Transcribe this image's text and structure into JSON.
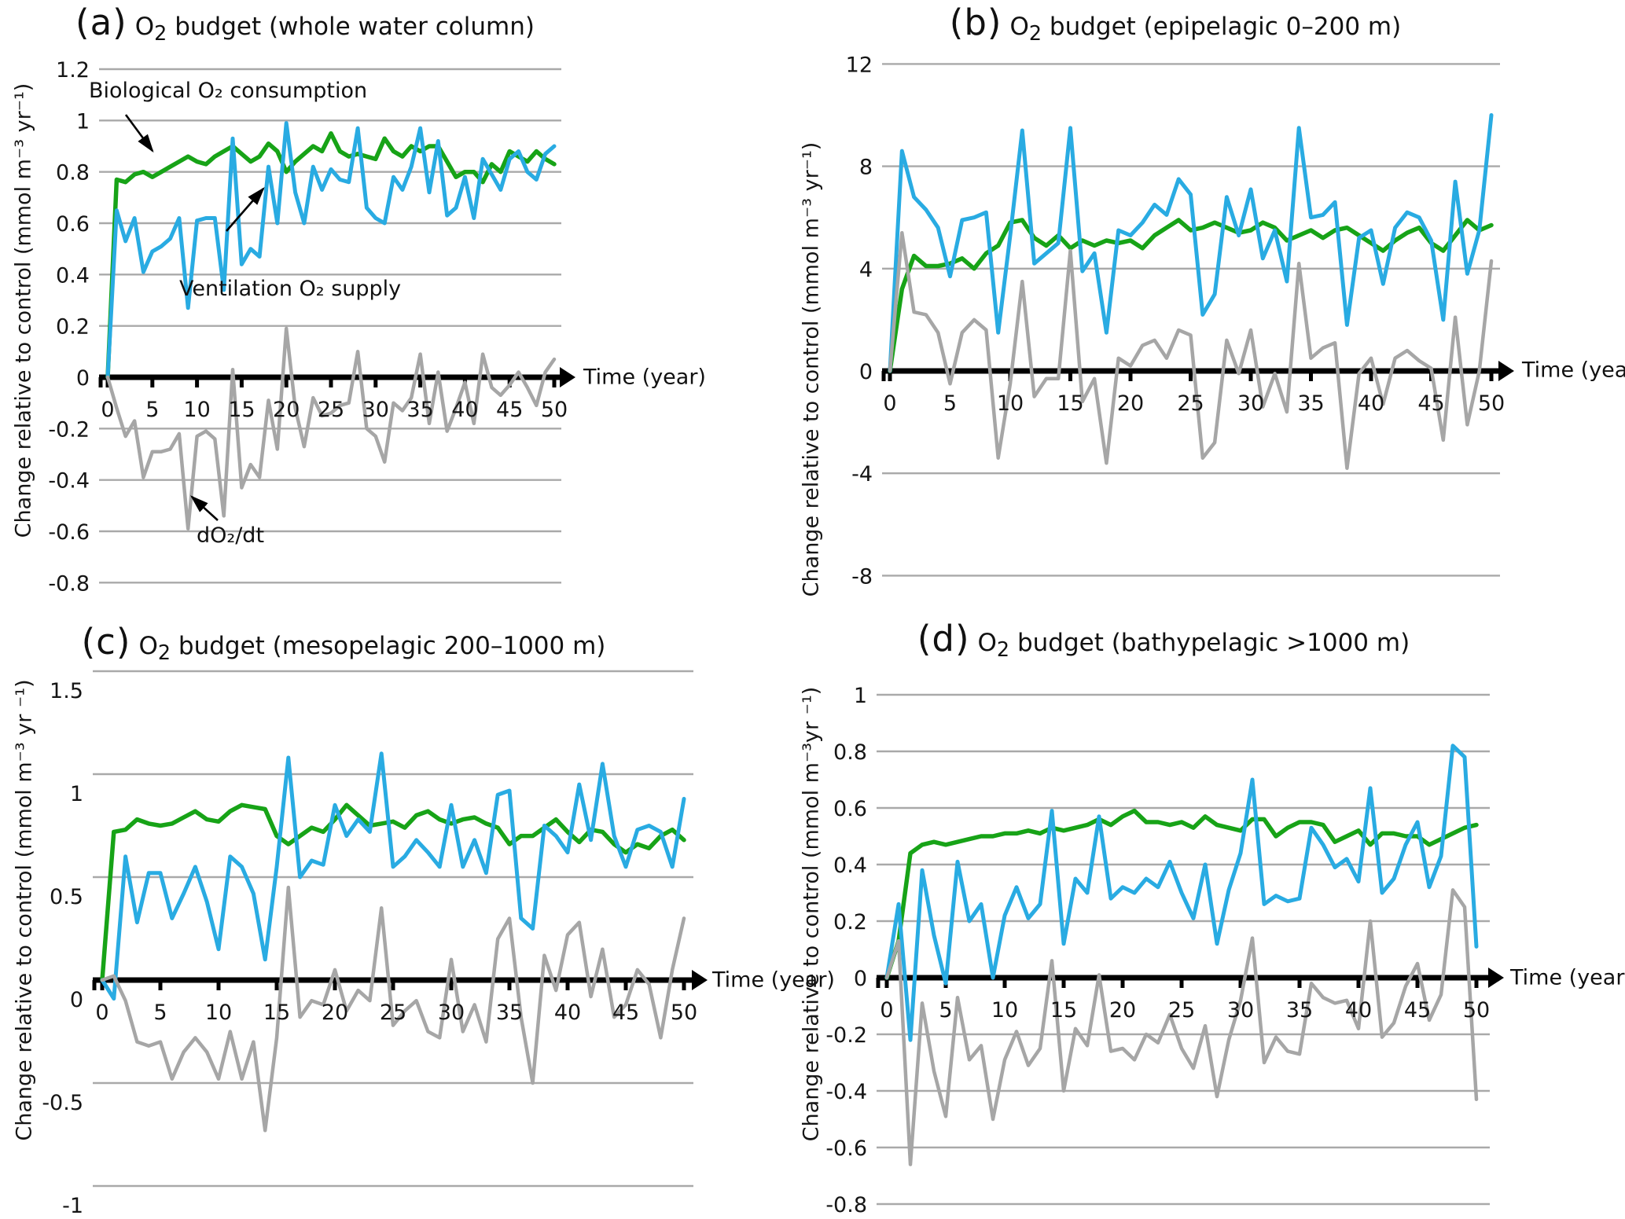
{
  "figure": {
    "background": "#ffffff",
    "colors": {
      "biological": "#17a317",
      "ventilation": "#29abe2",
      "dO2dt": "#a6a6a6",
      "gridline": "#a9a9a9",
      "axis": "#000000",
      "text": "#151515"
    }
  },
  "annotations": {
    "biological": "Biological O₂ consumption",
    "ventilation": "Ventilation O₂ supply",
    "dO2dt": "dO₂/dt"
  },
  "years": [
    0,
    1,
    2,
    3,
    4,
    5,
    6,
    7,
    8,
    9,
    10,
    11,
    12,
    13,
    14,
    15,
    16,
    17,
    18,
    19,
    20,
    21,
    22,
    23,
    24,
    25,
    26,
    27,
    28,
    29,
    30,
    31,
    32,
    33,
    34,
    35,
    36,
    37,
    38,
    39,
    40,
    41,
    42,
    43,
    44,
    45,
    46,
    47,
    48,
    49,
    50
  ],
  "chart_data": [
    {
      "type": "line",
      "panel": "(a)",
      "title": "O₂ budget (whole water column)",
      "xlabel": "Time (year)",
      "ylabel": "Change relative to control (mmol m⁻³ yr⁻¹)",
      "xlim": [
        0,
        50
      ],
      "ylim": [
        -0.8,
        1.2
      ],
      "grid": true,
      "legend": "annotated on plot",
      "xticks": [
        0,
        5,
        10,
        15,
        20,
        25,
        30,
        35,
        40,
        45,
        50
      ],
      "ytick_values": [
        1.2,
        1.0,
        0.8,
        0.6,
        0.4,
        0.2,
        0,
        -0.2,
        -0.4,
        -0.6,
        -0.8
      ],
      "ytick_labels": [
        "1.2",
        "1",
        "0.8",
        "0.6",
        "0.4",
        "0.2",
        "0",
        "-0.2",
        "-0.4",
        "-0.6",
        "-0.8"
      ],
      "series": [
        {
          "name": "Biological O₂ consumption",
          "color": "#17a317",
          "values": [
            0.0,
            0.77,
            0.76,
            0.79,
            0.8,
            0.78,
            0.8,
            0.82,
            0.84,
            0.86,
            0.84,
            0.83,
            0.86,
            0.88,
            0.9,
            0.87,
            0.84,
            0.86,
            0.91,
            0.88,
            0.8,
            0.84,
            0.87,
            0.9,
            0.88,
            0.95,
            0.88,
            0.86,
            0.87,
            0.86,
            0.85,
            0.93,
            0.88,
            0.86,
            0.9,
            0.88,
            0.9,
            0.9,
            0.84,
            0.78,
            0.8,
            0.8,
            0.76,
            0.83,
            0.8,
            0.88,
            0.86,
            0.84,
            0.88,
            0.85,
            0.83
          ]
        },
        {
          "name": "Ventilation O₂ supply",
          "color": "#29abe2",
          "values": [
            0.0,
            0.65,
            0.53,
            0.62,
            0.41,
            0.49,
            0.51,
            0.54,
            0.62,
            0.27,
            0.61,
            0.62,
            0.62,
            0.34,
            0.93,
            0.44,
            0.5,
            0.47,
            0.82,
            0.6,
            0.99,
            0.72,
            0.6,
            0.82,
            0.73,
            0.81,
            0.77,
            0.76,
            0.97,
            0.66,
            0.62,
            0.6,
            0.78,
            0.73,
            0.82,
            0.97,
            0.72,
            0.92,
            0.63,
            0.66,
            0.78,
            0.62,
            0.85,
            0.79,
            0.73,
            0.85,
            0.88,
            0.8,
            0.77,
            0.87,
            0.9
          ]
        },
        {
          "name": "dO₂/dt",
          "color": "#a6a6a6",
          "values": [
            0.0,
            -0.12,
            -0.23,
            -0.17,
            -0.39,
            -0.29,
            -0.29,
            -0.28,
            -0.22,
            -0.59,
            -0.23,
            -0.21,
            -0.24,
            -0.54,
            0.03,
            -0.43,
            -0.34,
            -0.39,
            -0.09,
            -0.28,
            0.19,
            -0.12,
            -0.27,
            -0.08,
            -0.15,
            -0.14,
            -0.11,
            -0.1,
            0.1,
            -0.2,
            -0.23,
            -0.33,
            -0.1,
            -0.13,
            -0.08,
            0.09,
            -0.18,
            0.02,
            -0.21,
            -0.12,
            -0.02,
            -0.18,
            0.09,
            -0.04,
            -0.07,
            -0.03,
            0.02,
            -0.04,
            -0.11,
            0.02,
            0.07
          ]
        }
      ]
    },
    {
      "type": "line",
      "panel": "(b)",
      "title": "O₂ budget (epipelagic 0–200 m)",
      "xlabel": "Time (year)",
      "ylabel": "Change relative to control (mmol m⁻³ yr⁻¹)",
      "xlim": [
        0,
        50
      ],
      "ylim": [
        -8,
        12
      ],
      "grid": true,
      "legend": "none",
      "xticks": [
        0,
        5,
        10,
        15,
        20,
        25,
        30,
        35,
        40,
        45,
        50
      ],
      "ytick_values": [
        12,
        8,
        4,
        0,
        -4,
        -8
      ],
      "ytick_labels": [
        "12",
        "8",
        "4",
        "0",
        "-4",
        "-8"
      ],
      "series": [
        {
          "name": "Biological O₂ consumption",
          "color": "#17a317",
          "values": [
            0,
            3.2,
            4.5,
            4.1,
            4.1,
            4.2,
            4.4,
            4.0,
            4.6,
            4.9,
            5.8,
            5.9,
            5.2,
            4.9,
            5.3,
            4.8,
            5.1,
            4.9,
            5.1,
            5.0,
            5.1,
            4.8,
            5.3,
            5.6,
            5.9,
            5.5,
            5.6,
            5.8,
            5.6,
            5.4,
            5.5,
            5.8,
            5.6,
            5.1,
            5.3,
            5.5,
            5.2,
            5.5,
            5.6,
            5.3,
            5.0,
            4.7,
            5.1,
            5.4,
            5.6,
            5.0,
            4.7,
            5.3,
            5.9,
            5.5,
            5.7
          ]
        },
        {
          "name": "Ventilation O₂ supply",
          "color": "#29abe2",
          "values": [
            0,
            8.6,
            6.8,
            6.3,
            5.6,
            3.7,
            5.9,
            6.0,
            6.2,
            1.5,
            5.3,
            9.4,
            4.2,
            4.6,
            5.0,
            9.5,
            3.9,
            4.6,
            1.5,
            5.5,
            5.3,
            5.8,
            6.5,
            6.1,
            7.5,
            6.9,
            2.2,
            3.0,
            6.8,
            5.3,
            7.1,
            4.4,
            5.5,
            3.5,
            9.5,
            6.0,
            6.1,
            6.6,
            1.8,
            5.2,
            5.5,
            3.4,
            5.6,
            6.2,
            6.0,
            5.1,
            2.0,
            7.4,
            3.8,
            5.5,
            10.0
          ]
        },
        {
          "name": "dO₂/dt",
          "color": "#a6a6a6",
          "values": [
            0,
            5.4,
            2.3,
            2.2,
            1.5,
            -0.5,
            1.5,
            2.0,
            1.6,
            -3.4,
            -0.5,
            3.5,
            -1.0,
            -0.3,
            -0.3,
            4.7,
            -1.2,
            -0.3,
            -3.6,
            0.5,
            0.2,
            1.0,
            1.2,
            0.5,
            1.6,
            1.4,
            -3.4,
            -2.8,
            1.2,
            -0.1,
            1.6,
            -1.4,
            -0.1,
            -1.6,
            4.2,
            0.5,
            0.9,
            1.1,
            -3.8,
            -0.1,
            0.5,
            -1.3,
            0.5,
            0.8,
            0.4,
            0.1,
            -2.7,
            2.1,
            -2.1,
            0.0,
            4.3
          ]
        }
      ]
    },
    {
      "type": "line",
      "panel": "(c)",
      "title": "O₂ budget (mesopelagic 200–1000 m)",
      "xlabel": "Time (year)",
      "ylabel": "Change relative to control (mmol m⁻³ yr ⁻¹)",
      "xlim": [
        0,
        50
      ],
      "ylim": [
        -1,
        1.5
      ],
      "grid": true,
      "legend": "none",
      "xticks": [
        0,
        5,
        10,
        15,
        20,
        25,
        30,
        35,
        40,
        45,
        50
      ],
      "ytick_values": [
        1.5,
        1.0,
        0.5,
        0,
        -0.5,
        -1.0
      ],
      "ytick_labels": [
        "1.5",
        "1",
        "0.5",
        "0",
        "-0.5",
        "-1"
      ],
      "series": [
        {
          "name": "Biological O₂ consumption",
          "color": "#17a317",
          "values": [
            0,
            0.72,
            0.73,
            0.78,
            0.76,
            0.75,
            0.76,
            0.79,
            0.82,
            0.78,
            0.77,
            0.82,
            0.85,
            0.84,
            0.83,
            0.7,
            0.66,
            0.7,
            0.74,
            0.72,
            0.78,
            0.85,
            0.8,
            0.75,
            0.76,
            0.77,
            0.74,
            0.8,
            0.82,
            0.78,
            0.76,
            0.78,
            0.79,
            0.76,
            0.74,
            0.66,
            0.7,
            0.7,
            0.74,
            0.78,
            0.72,
            0.67,
            0.73,
            0.72,
            0.66,
            0.62,
            0.66,
            0.64,
            0.7,
            0.73,
            0.68
          ]
        },
        {
          "name": "Ventilation O₂ supply",
          "color": "#29abe2",
          "values": [
            0,
            -0.09,
            0.6,
            0.28,
            0.52,
            0.52,
            0.3,
            0.42,
            0.55,
            0.38,
            0.15,
            0.6,
            0.55,
            0.42,
            0.1,
            0.55,
            1.08,
            0.5,
            0.58,
            0.56,
            0.85,
            0.7,
            0.78,
            0.72,
            1.1,
            0.55,
            0.6,
            0.68,
            0.62,
            0.55,
            0.85,
            0.55,
            0.68,
            0.52,
            0.9,
            0.92,
            0.3,
            0.25,
            0.75,
            0.7,
            0.62,
            0.95,
            0.68,
            1.05,
            0.7,
            0.55,
            0.73,
            0.75,
            0.72,
            0.55,
            0.88
          ]
        },
        {
          "name": "dO₂/dt",
          "color": "#a6a6a6",
          "values": [
            0,
            0.02,
            -0.1,
            -0.3,
            -0.32,
            -0.3,
            -0.48,
            -0.35,
            -0.28,
            -0.35,
            -0.48,
            -0.25,
            -0.48,
            -0.3,
            -0.73,
            -0.28,
            0.45,
            -0.18,
            -0.1,
            -0.12,
            0.05,
            -0.15,
            -0.05,
            -0.1,
            0.35,
            -0.22,
            -0.15,
            -0.1,
            -0.25,
            -0.28,
            0.1,
            -0.25,
            -0.12,
            -0.3,
            0.2,
            0.3,
            -0.18,
            -0.5,
            0.12,
            -0.05,
            0.22,
            0.28,
            -0.08,
            0.15,
            -0.18,
            -0.12,
            0.05,
            -0.02,
            -0.28,
            0.05,
            0.3
          ]
        }
      ]
    },
    {
      "type": "line",
      "panel": "(d)",
      "title": "O₂ budget (bathypelagic >1000 m)",
      "xlabel": "Time (year)",
      "ylabel": "Change relative to control (mmol m⁻³yr ⁻¹)",
      "xlim": [
        0,
        50
      ],
      "ylim": [
        -0.8,
        1.0
      ],
      "grid": true,
      "legend": "none",
      "xticks": [
        0,
        5,
        10,
        15,
        20,
        25,
        30,
        35,
        40,
        45,
        50
      ],
      "ytick_values": [
        1.0,
        0.8,
        0.6,
        0.4,
        0.2,
        0,
        -0.2,
        -0.4,
        -0.6,
        -0.8
      ],
      "ytick_labels": [
        "1",
        "0.8",
        "0.6",
        "0.4",
        "0.2",
        "0",
        "-0.2",
        "-0.4",
        "-0.6",
        "-0.8"
      ],
      "series": [
        {
          "name": "Biological O₂ consumption",
          "color": "#17a317",
          "values": [
            0,
            0.13,
            0.44,
            0.47,
            0.48,
            0.47,
            0.48,
            0.49,
            0.5,
            0.5,
            0.51,
            0.51,
            0.52,
            0.51,
            0.53,
            0.52,
            0.53,
            0.54,
            0.56,
            0.54,
            0.57,
            0.59,
            0.55,
            0.55,
            0.54,
            0.55,
            0.53,
            0.57,
            0.54,
            0.53,
            0.52,
            0.56,
            0.56,
            0.5,
            0.53,
            0.55,
            0.55,
            0.54,
            0.48,
            0.5,
            0.52,
            0.47,
            0.51,
            0.51,
            0.5,
            0.5,
            0.47,
            0.49,
            0.51,
            0.53,
            0.54
          ]
        },
        {
          "name": "Ventilation O₂ supply",
          "color": "#29abe2",
          "values": [
            0,
            0.26,
            -0.22,
            0.38,
            0.15,
            -0.02,
            0.41,
            0.2,
            0.26,
            0.0,
            0.22,
            0.32,
            0.21,
            0.26,
            0.59,
            0.12,
            0.35,
            0.3,
            0.57,
            0.28,
            0.32,
            0.3,
            0.35,
            0.32,
            0.41,
            0.3,
            0.21,
            0.4,
            0.12,
            0.31,
            0.44,
            0.7,
            0.26,
            0.29,
            0.27,
            0.28,
            0.53,
            0.47,
            0.39,
            0.42,
            0.34,
            0.67,
            0.3,
            0.35,
            0.47,
            0.55,
            0.32,
            0.43,
            0.82,
            0.78,
            0.11
          ]
        },
        {
          "name": "dO₂/dt",
          "color": "#a6a6a6",
          "values": [
            0,
            0.13,
            -0.66,
            -0.09,
            -0.33,
            -0.49,
            -0.07,
            -0.29,
            -0.24,
            -0.5,
            -0.29,
            -0.19,
            -0.31,
            -0.25,
            0.06,
            -0.4,
            -0.18,
            -0.24,
            0.01,
            -0.26,
            -0.25,
            -0.29,
            -0.2,
            -0.23,
            -0.13,
            -0.25,
            -0.32,
            -0.17,
            -0.42,
            -0.22,
            -0.08,
            0.14,
            -0.3,
            -0.21,
            -0.26,
            -0.27,
            -0.02,
            -0.07,
            -0.09,
            -0.08,
            -0.18,
            0.2,
            -0.21,
            -0.16,
            -0.03,
            0.05,
            -0.15,
            -0.06,
            0.31,
            0.25,
            -0.43
          ]
        }
      ]
    }
  ]
}
